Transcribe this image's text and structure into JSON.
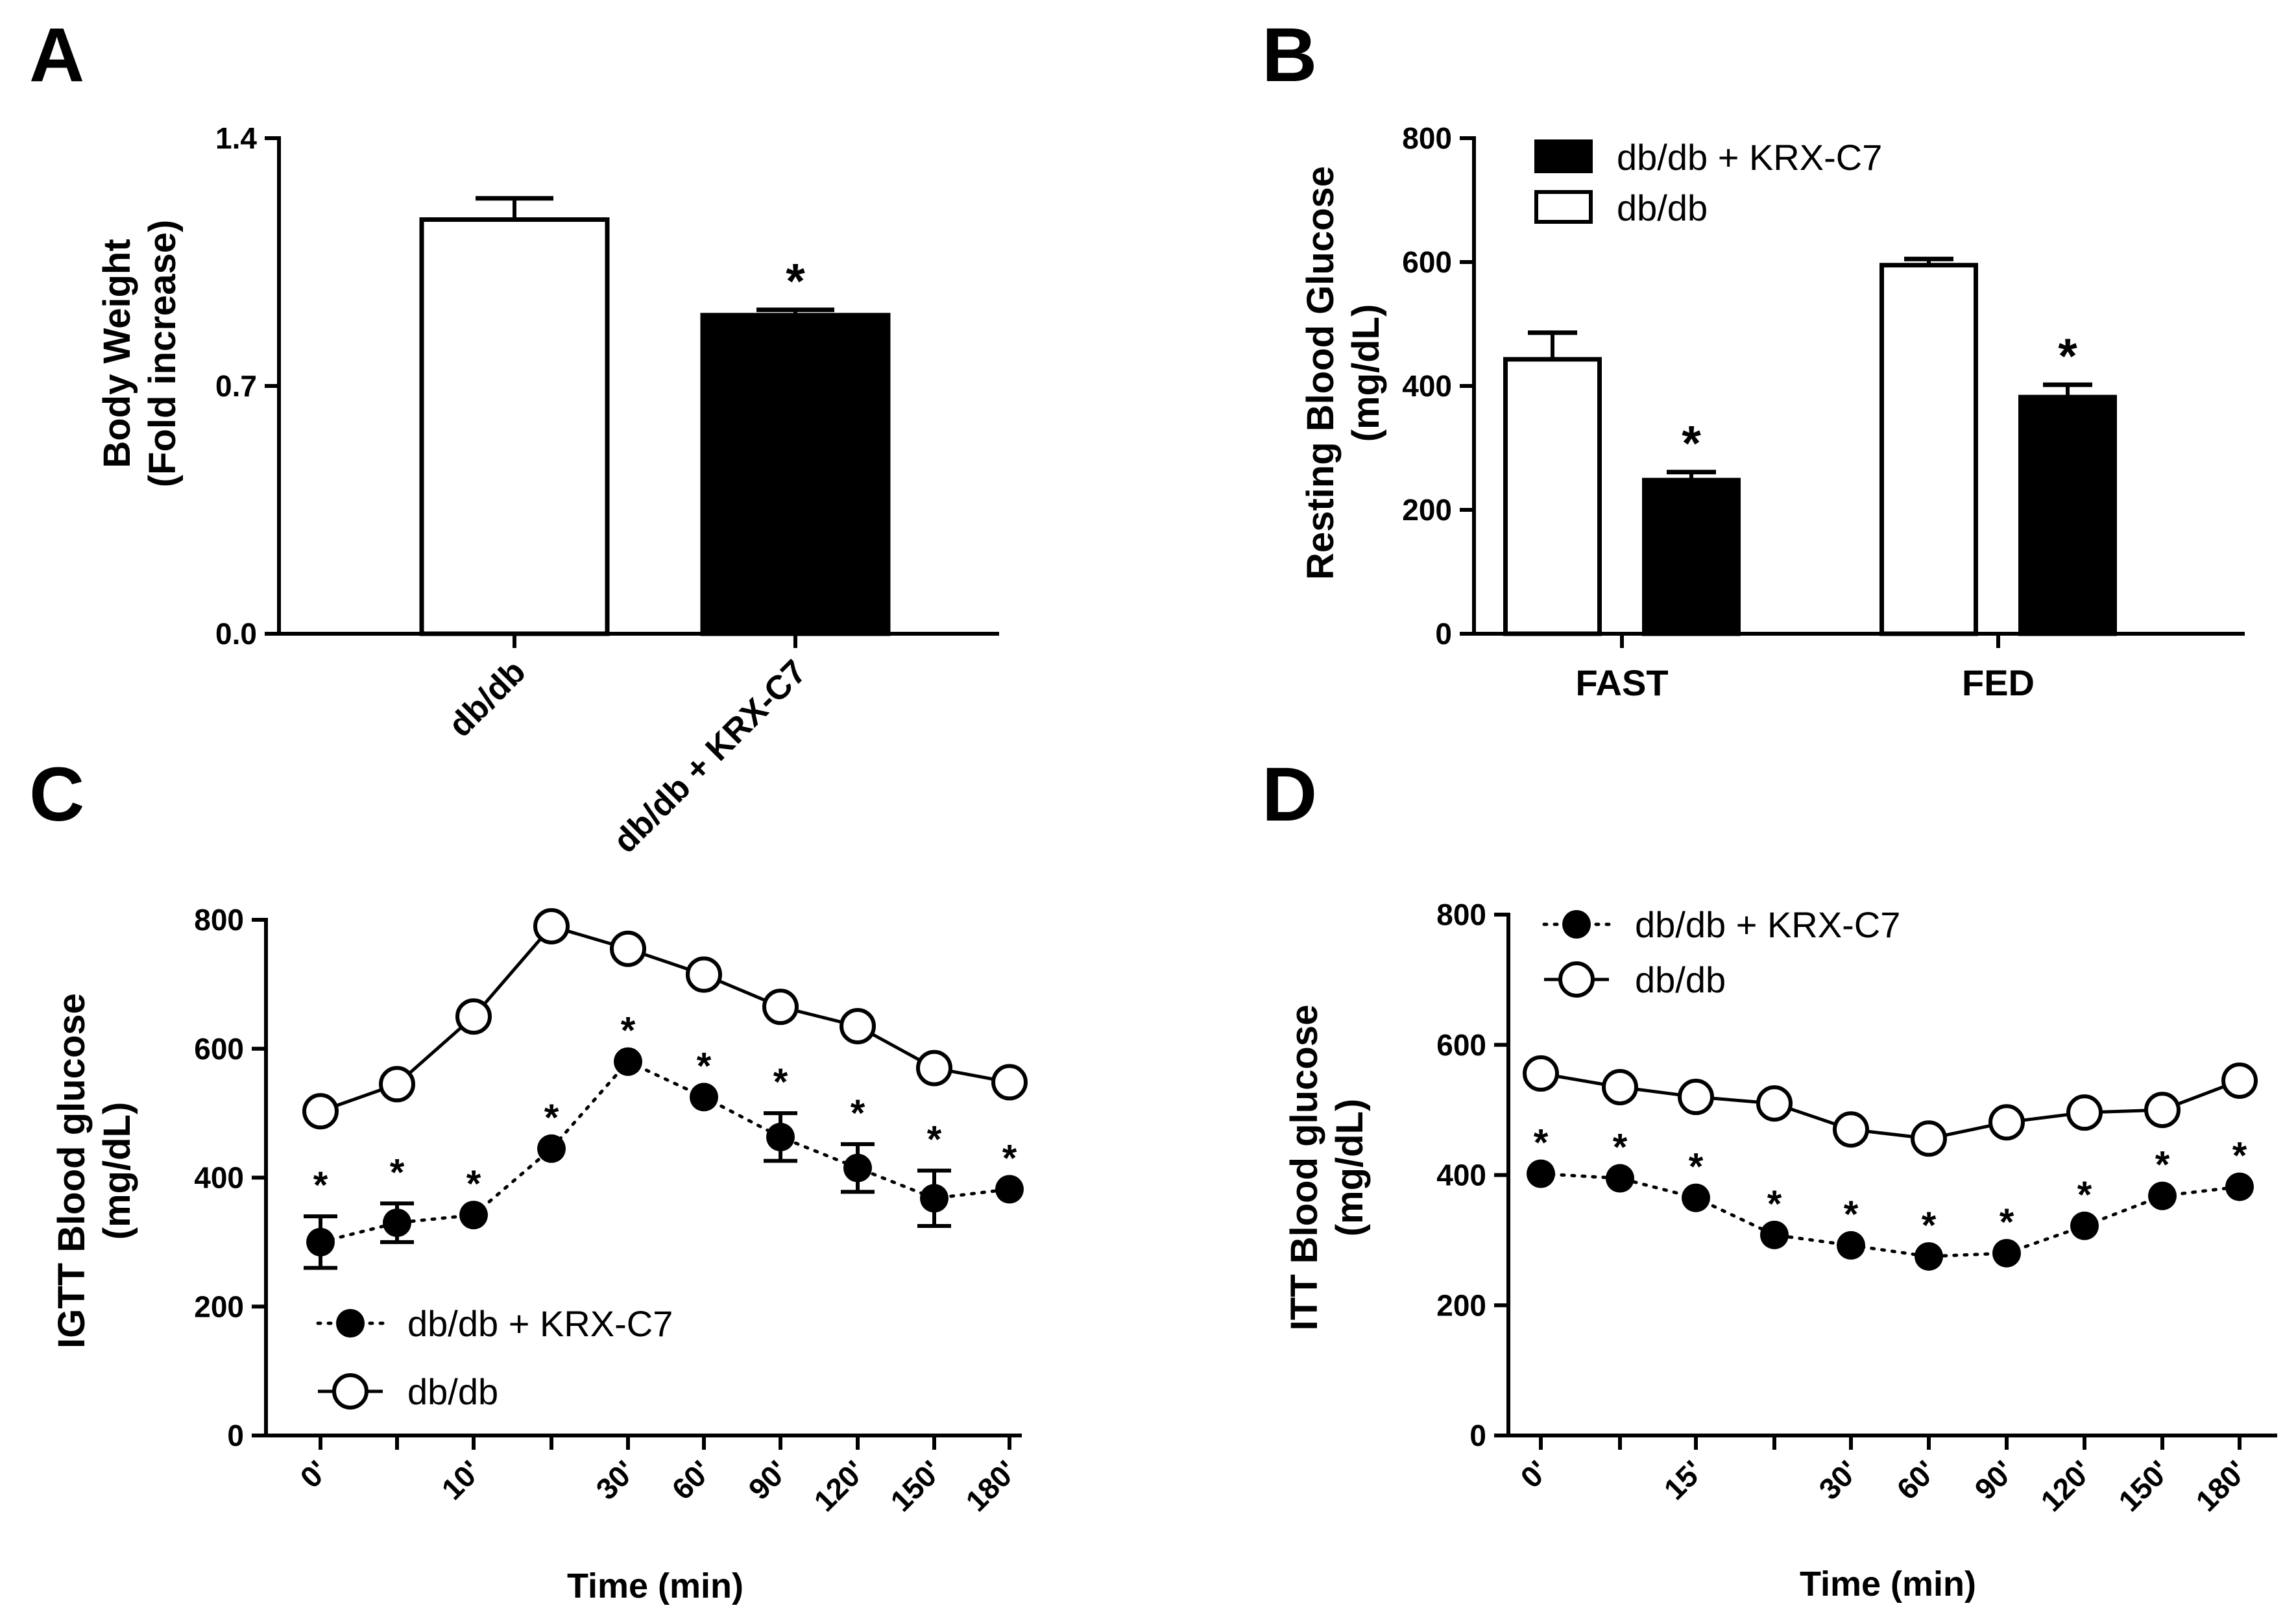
{
  "chart_data": [
    {
      "panel": "A",
      "type": "bar",
      "ylabel": [
        "Body Weight",
        "(Fold increase)"
      ],
      "ylim": [
        0,
        1.4
      ],
      "yticks": [
        "0.0",
        "0.7",
        "1.4"
      ],
      "categories": [
        "db/db",
        "db/db + KRX-C7"
      ],
      "values": [
        1.17,
        0.9
      ],
      "errors": [
        0.06,
        0.015
      ],
      "fills": [
        "#ffffff",
        "#000000"
      ],
      "significance": [
        "",
        "*"
      ]
    },
    {
      "panel": "B",
      "type": "bar",
      "ylabel": [
        "Resting Blood Glucose",
        "(mg/dL)"
      ],
      "ylim": [
        0,
        800
      ],
      "yticks": [
        "0",
        "200",
        "400",
        "600",
        "800"
      ],
      "categories": [
        "FAST",
        "FED"
      ],
      "series": [
        {
          "name": "db/db",
          "fill": "#ffffff",
          "values": [
            443,
            595
          ],
          "errors": [
            43,
            10
          ],
          "significance": [
            "",
            ""
          ]
        },
        {
          "name": "db/db + KRX-C7",
          "fill": "#000000",
          "values": [
            248,
            382
          ],
          "errors": [
            13,
            20
          ],
          "significance": [
            "*",
            "*"
          ]
        }
      ],
      "legend": [
        "db/db + KRX-C7",
        "db/db"
      ]
    },
    {
      "panel": "C",
      "type": "line",
      "ylabel": [
        "IGTT Blood glucose",
        "(mg/dL)"
      ],
      "xlabel": "Time (min)",
      "ylim": [
        0,
        800
      ],
      "yticks": [
        "0",
        "200",
        "400",
        "600",
        "800"
      ],
      "xticks": [
        "0'",
        "",
        "10'",
        "",
        "30'",
        "60'",
        "90'",
        "120'",
        "150'",
        "180'"
      ],
      "series": [
        {
          "name": "db/db + KRX-C7",
          "marker": "filled",
          "style": "dotted",
          "values": [
            300,
            330,
            342,
            445,
            580,
            525,
            463,
            415,
            368,
            382
          ],
          "errors": [
            40,
            30,
            0,
            0,
            0,
            0,
            37,
            37,
            43,
            0
          ]
        },
        {
          "name": "db/db",
          "marker": "open",
          "style": "solid",
          "values": [
            503,
            545,
            650,
            790,
            755,
            715,
            665,
            635,
            570,
            548
          ],
          "errors": [
            0,
            0,
            0,
            0,
            0,
            0,
            0,
            0,
            0,
            0
          ]
        }
      ],
      "significance": [
        "*",
        "*",
        "*",
        "*",
        "*",
        "*",
        "*",
        "*",
        "*",
        "*"
      ],
      "legend": [
        "db/db + KRX-C7",
        "db/db"
      ]
    },
    {
      "panel": "D",
      "type": "line",
      "ylabel": [
        "ITT Blood glucose",
        "(mg/dL)"
      ],
      "xlabel": "Time (min)",
      "ylim": [
        0,
        800
      ],
      "yticks": [
        "0",
        "200",
        "400",
        "600",
        "800"
      ],
      "xticks": [
        "0'",
        "",
        "15'",
        "",
        "30'",
        "60'",
        "90'",
        "120'",
        "150'",
        "180'"
      ],
      "series": [
        {
          "name": "db/db + KRX-C7",
          "marker": "filled",
          "style": "dotted",
          "values": [
            402,
            395,
            365,
            308,
            292,
            275,
            280,
            322,
            368,
            382
          ],
          "errors": [
            0,
            0,
            0,
            0,
            0,
            0,
            0,
            0,
            0,
            0
          ]
        },
        {
          "name": "db/db",
          "marker": "open",
          "style": "solid",
          "values": [
            556,
            535,
            520,
            510,
            470,
            456,
            481,
            496,
            500,
            545
          ],
          "errors": [
            0,
            0,
            0,
            0,
            0,
            0,
            0,
            0,
            0,
            0
          ]
        }
      ],
      "significance": [
        "*",
        "*",
        "*",
        "*",
        "*",
        "*",
        "*",
        "*",
        "*",
        "*"
      ],
      "legend": [
        "db/db + KRX-C7",
        "db/db"
      ]
    }
  ]
}
